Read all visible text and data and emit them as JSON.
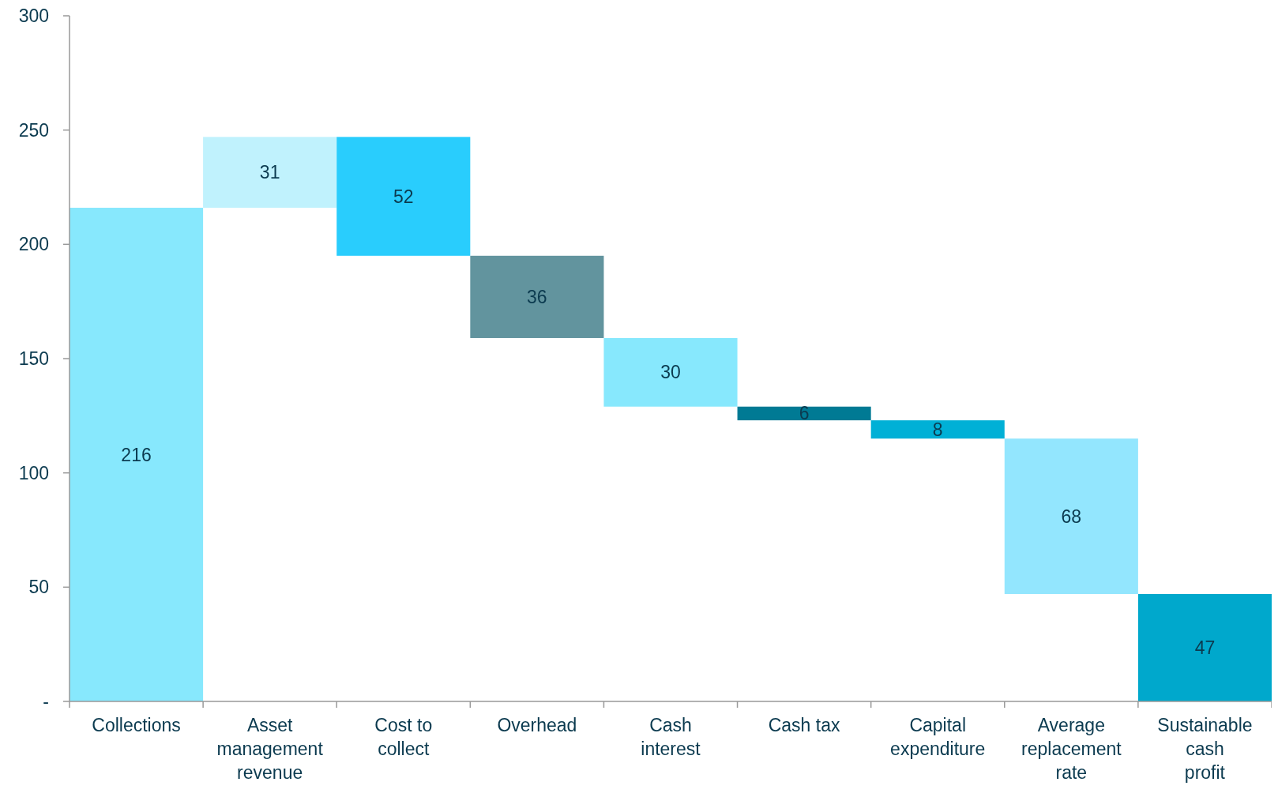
{
  "chart_data": {
    "type": "bar",
    "categories": [
      "Collections",
      "Asset management revenue",
      "Cost to collect",
      "Overhead",
      "Cash interest",
      "Cash tax",
      "Capital expenditure",
      "Average replacement rate",
      "Sustainable cash profit"
    ],
    "values": [
      216,
      31,
      52,
      36,
      30,
      6,
      8,
      68,
      47
    ],
    "base": [
      0,
      216,
      195,
      159,
      129,
      123,
      115,
      47,
      0
    ],
    "colors": [
      "#87e8fd",
      "#c0f2fd",
      "#29cdfd",
      "#62949e",
      "#87e8fd",
      "#007a94",
      "#00b0d6",
      "#93e6fe",
      "#00a8cc"
    ],
    "ylim": [
      0,
      300
    ],
    "yticks": [
      {
        "value": 0,
        "label": "-"
      },
      50,
      100,
      150,
      200,
      250,
      300
    ],
    "grid": false,
    "data_labels": true
  }
}
